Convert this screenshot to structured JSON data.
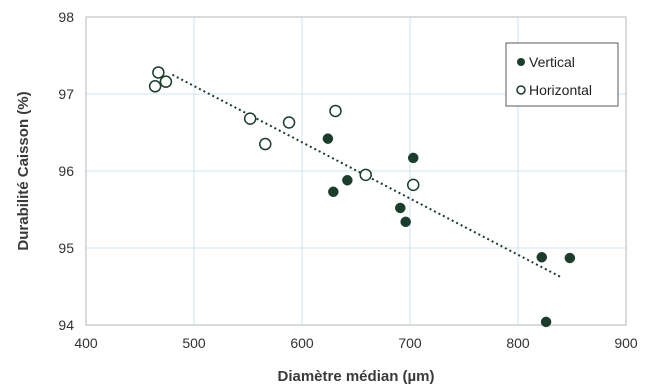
{
  "chart_data": {
    "type": "scatter",
    "xlabel": "Diamètre médian (µm)",
    "ylabel": "Durabilité Caisson (%)",
    "xlim": [
      400,
      900
    ],
    "ylim": [
      94,
      98
    ],
    "xticks": [
      "400",
      "500",
      "600",
      "700",
      "800",
      "900"
    ],
    "yticks": [
      "94",
      "95",
      "96",
      "97",
      "98"
    ],
    "grid": true,
    "legend_position": "top-right",
    "series": [
      {
        "name": "Vertical",
        "marker": "filled-circle",
        "color": "#1a3d2c",
        "points": [
          [
            624,
            96.42
          ],
          [
            629,
            95.73
          ],
          [
            642,
            95.88
          ],
          [
            691,
            95.52
          ],
          [
            696,
            95.34
          ],
          [
            703,
            96.17
          ],
          [
            822,
            94.88
          ],
          [
            848,
            94.87
          ],
          [
            826,
            94.04
          ]
        ]
      },
      {
        "name": "Horizontal",
        "marker": "open-circle",
        "color": "#1a3d2c",
        "points": [
          [
            464,
            97.1
          ],
          [
            467,
            97.28
          ],
          [
            474,
            97.16
          ],
          [
            552,
            96.68
          ],
          [
            566,
            96.35
          ],
          [
            588,
            96.63
          ],
          [
            631,
            96.78
          ],
          [
            659,
            95.95
          ],
          [
            703,
            95.82
          ]
        ]
      }
    ],
    "trendline": {
      "style": "dotted",
      "color": "#1a3d2c",
      "points": [
        [
          480,
          97.25
        ],
        [
          840,
          94.62
        ]
      ]
    }
  }
}
